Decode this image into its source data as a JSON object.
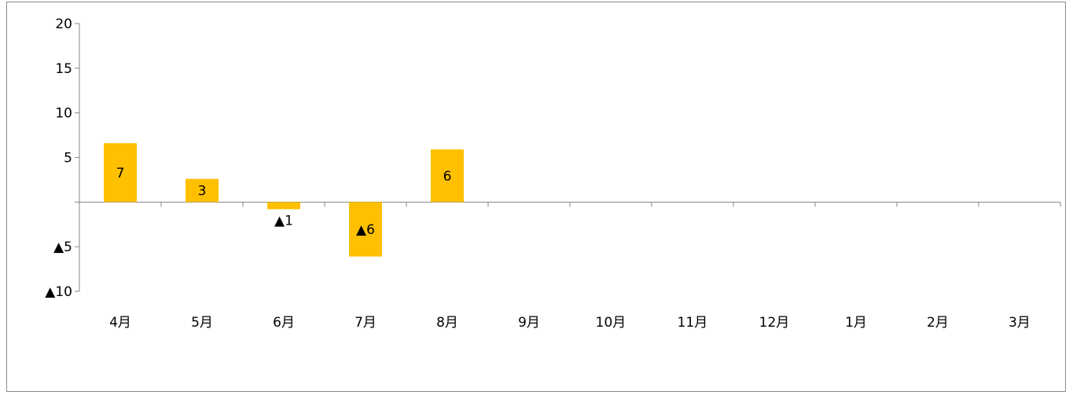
{
  "chart_data": {
    "type": "bar",
    "categories": [
      "4月",
      "5月",
      "6月",
      "7月",
      "8月",
      "9月",
      "10月",
      "11月",
      "12月",
      "1月",
      "2月",
      "3月"
    ],
    "values": [
      6.6,
      2.6,
      -0.8,
      -6.1,
      5.9,
      null,
      null,
      null,
      null,
      null,
      null,
      null
    ],
    "data_labels": [
      "7",
      "3",
      "▲1",
      "▲6",
      "6",
      "",
      "",
      "",
      "",
      "",
      "",
      ""
    ],
    "ylim": [
      -10,
      20
    ],
    "yticks": [
      20,
      15,
      10,
      5,
      0,
      -5,
      -10
    ],
    "ytick_labels": [
      "20",
      "15",
      "10",
      "5",
      "",
      "▲5",
      "▲10"
    ],
    "bar_color": "#FFC000",
    "axis_color": "#868686",
    "title": "",
    "xlabel": "",
    "ylabel": "",
    "grid": false,
    "legend": "none"
  }
}
